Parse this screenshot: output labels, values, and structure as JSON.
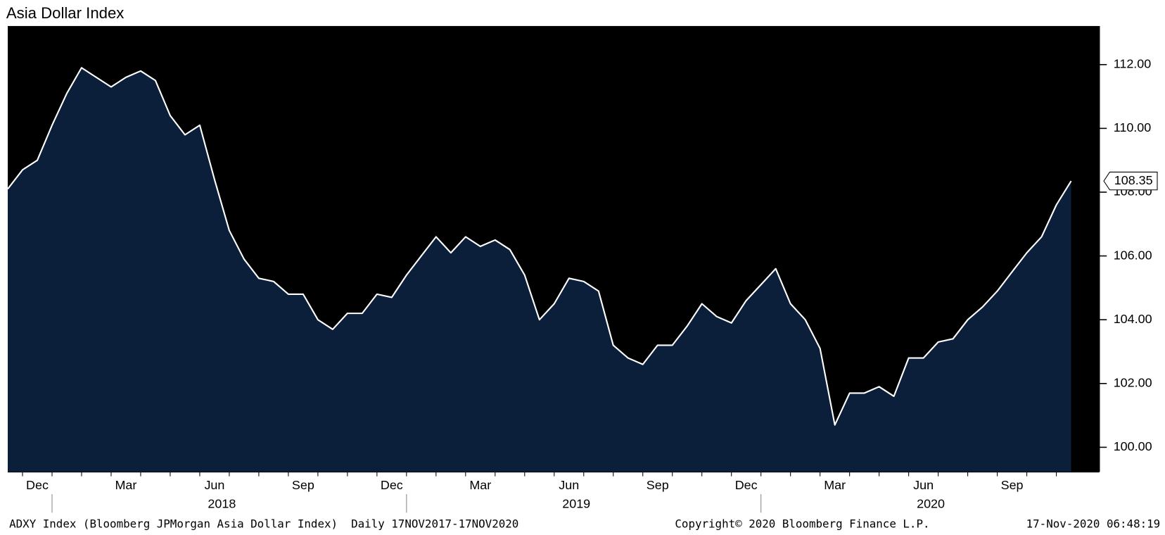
{
  "chart_data": {
    "type": "area",
    "title": "Asia Dollar Index",
    "categories": [
      null,
      "Dec",
      null,
      null,
      null,
      null,
      null,
      "Mar",
      null,
      null,
      null,
      null,
      null,
      "Jun",
      null,
      null,
      null,
      null,
      null,
      "Sep",
      null,
      null,
      null,
      null,
      null,
      "Dec",
      null,
      null,
      null,
      null,
      null,
      "Mar",
      null,
      null,
      null,
      null,
      null,
      "Jun",
      null,
      null,
      null,
      null,
      null,
      "Sep",
      null,
      null,
      null,
      null,
      null,
      "Dec",
      null,
      null,
      null,
      null,
      null,
      "Mar",
      null,
      null,
      null,
      null,
      null,
      "Jun",
      null,
      null,
      null,
      null,
      null,
      "Sep",
      null,
      null,
      null,
      null,
      null
    ],
    "x_group_labels": [
      "2018",
      "2019",
      "2020"
    ],
    "values": [
      108.1,
      108.7,
      109.0,
      110.1,
      111.1,
      111.9,
      111.6,
      111.3,
      111.6,
      111.8,
      111.5,
      110.4,
      109.8,
      110.1,
      108.4,
      106.8,
      105.9,
      105.3,
      105.2,
      104.8,
      104.8,
      104.0,
      103.7,
      104.2,
      104.2,
      104.8,
      104.7,
      105.4,
      106.0,
      106.6,
      106.1,
      106.6,
      106.3,
      106.5,
      106.2,
      105.4,
      104.0,
      104.5,
      105.3,
      105.2,
      104.9,
      103.2,
      102.8,
      102.6,
      103.2,
      103.2,
      103.8,
      104.5,
      104.1,
      103.9,
      104.6,
      105.1,
      105.6,
      104.5,
      104.0,
      103.1,
      100.7,
      101.7,
      101.7,
      101.9,
      101.6,
      102.8,
      102.8,
      103.3,
      103.4,
      104.0,
      104.4,
      104.9,
      105.5,
      106.1,
      106.6,
      107.6,
      108.35
    ],
    "line_color": "#ffffff",
    "fill_color": "#0b1f3b",
    "background": "#000000",
    "ylim": [
      99.23,
      113.21
    ],
    "yticks": [
      {
        "value": 100,
        "label": "100.00"
      },
      {
        "value": 102,
        "label": "102.00"
      },
      {
        "value": 104,
        "label": "104.00"
      },
      {
        "value": 106,
        "label": "106.00"
      },
      {
        "value": 108,
        "label": "108.00"
      },
      {
        "value": 110,
        "label": "110.00"
      },
      {
        "value": 112,
        "label": "112.00"
      }
    ],
    "y_axis_side": "right",
    "grid": false,
    "footer": [
      "ADXY Index (Bloomberg JPMorgan Asia Dollar Index)  Daily 17NOV2017-17NOV2020",
      "Copyright© 2020 Bloomberg Finance L.P.",
      "17-Nov-2020 06:48:19"
    ]
  }
}
